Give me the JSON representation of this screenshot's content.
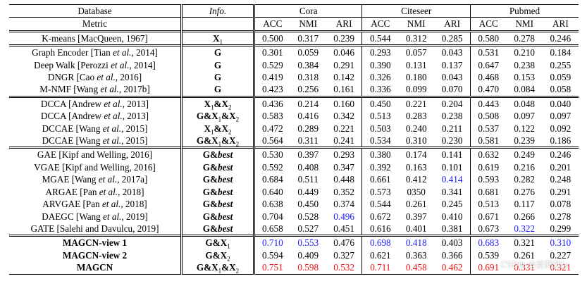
{
  "header": {
    "database_label": "Database",
    "info_label": "Info.",
    "datasets": [
      "Cora",
      "Citeseer",
      "Pubmed"
    ],
    "metric_label": "Metric",
    "metrics": [
      "ACC",
      "NMI",
      "ARI"
    ]
  },
  "rows": [
    {
      "group": 1,
      "method": "K-means [MacQueen, 1967]",
      "info": "X1",
      "bold": false,
      "values": [
        "0.500",
        "0.317",
        "0.239",
        "0.544",
        "0.312",
        "0.285",
        "0.580",
        "0.278",
        "0.246"
      ],
      "colors": [
        "",
        "",
        "",
        "",
        "",
        "",
        "",
        "",
        ""
      ]
    },
    {
      "group": 2,
      "method": "Graph Encoder [Tian et al., 2014]",
      "info": "G",
      "bold": false,
      "values": [
        "0.301",
        "0.059",
        "0.046",
        "0.293",
        "0.057",
        "0.043",
        "0.531",
        "0.210",
        "0.184"
      ],
      "colors": [
        "",
        "",
        "",
        "",
        "",
        "",
        "",
        "",
        ""
      ]
    },
    {
      "group": 2,
      "method": "Deep Walk [Perozzi et al., 2014]",
      "info": "G",
      "bold": false,
      "values": [
        "0.529",
        "0.384",
        "0.291",
        "0.390",
        "0.131",
        "0.137",
        "0.647",
        "0.238",
        "0.255"
      ],
      "colors": [
        "",
        "",
        "",
        "",
        "",
        "",
        "",
        "",
        ""
      ]
    },
    {
      "group": 2,
      "method": "DNGR [Cao et al., 2016]",
      "info": "G",
      "bold": false,
      "values": [
        "0.419",
        "0.318",
        "0.142",
        "0.326",
        "0.180",
        "0.043",
        "0.468",
        "0.153",
        "0.059"
      ],
      "colors": [
        "",
        "",
        "",
        "",
        "",
        "",
        "",
        "",
        ""
      ]
    },
    {
      "group": 2,
      "method": "M-NMF [Wang et al., 2017b]",
      "info": "G",
      "bold": false,
      "values": [
        "0.423",
        "0.256",
        "0.161",
        "0.336",
        "0.099",
        "0.070",
        "0.470",
        "0.084",
        "0.058"
      ],
      "colors": [
        "",
        "",
        "",
        "",
        "",
        "",
        "",
        "",
        ""
      ]
    },
    {
      "group": 3,
      "method": "DCCA [Andrew et al., 2013]",
      "info": "X1&X2",
      "bold": false,
      "values": [
        "0.436",
        "0.214",
        "0.160",
        "0.450",
        "0.221",
        "0.204",
        "0.443",
        "0.048",
        "0.040"
      ],
      "colors": [
        "",
        "",
        "",
        "",
        "",
        "",
        "",
        "",
        ""
      ]
    },
    {
      "group": 3,
      "method": "DCCA [Andrew et al., 2013]",
      "info": "G&X1&X2",
      "bold": false,
      "values": [
        "0.583",
        "0.416",
        "0.342",
        "0.513",
        "0.283",
        "0.238",
        "0.508",
        "0.097",
        "0.097"
      ],
      "colors": [
        "",
        "",
        "",
        "",
        "",
        "",
        "",
        "",
        ""
      ]
    },
    {
      "group": 3,
      "method": "DCCAE [Wang et al., 2015]",
      "info": "X1&X2",
      "bold": false,
      "values": [
        "0.472",
        "0.289",
        "0.221",
        "0.503",
        "0.240",
        "0.211",
        "0.537",
        "0.122",
        "0.092"
      ],
      "colors": [
        "",
        "",
        "",
        "",
        "",
        "",
        "",
        "",
        ""
      ]
    },
    {
      "group": 3,
      "method": "DCCAE [Wang et al., 2015]",
      "info": "G&X1&X2",
      "bold": false,
      "values": [
        "0.564",
        "0.311",
        "0.241",
        "0.534",
        "0.310",
        "0.230",
        "0.581",
        "0.239",
        "0.186"
      ],
      "colors": [
        "",
        "",
        "",
        "",
        "",
        "",
        "",
        "",
        ""
      ]
    },
    {
      "group": 4,
      "method": "GAE [Kipf and Welling, 2016]",
      "info": "G&bestX",
      "bold": false,
      "values": [
        "0.530",
        "0.397",
        "0.293",
        "0.380",
        "0.174",
        "0.141",
        "0.632",
        "0.249",
        "0.246"
      ],
      "colors": [
        "",
        "",
        "",
        "",
        "",
        "",
        "",
        "",
        ""
      ]
    },
    {
      "group": 4,
      "method": "VGAE [Kipf and Welling, 2016]",
      "info": "G&bestX",
      "bold": false,
      "values": [
        "0.592",
        "0.408",
        "0.347",
        "0.392",
        "0.163",
        "0.101",
        "0.619",
        "0.216",
        "0.201"
      ],
      "colors": [
        "",
        "",
        "",
        "",
        "",
        "",
        "",
        "",
        ""
      ]
    },
    {
      "group": 4,
      "method": "MGAE [Wang et al., 2017a]",
      "info": "G&bestX",
      "bold": false,
      "values": [
        "0.684",
        "0.511",
        "0.448",
        "0.661",
        "0.412",
        "0.414",
        "0.593",
        "0.282",
        "0.248"
      ],
      "colors": [
        "",
        "",
        "",
        "",
        "",
        "blue",
        "",
        "",
        ""
      ]
    },
    {
      "group": 4,
      "method": "ARGAE [Pan et al., 2018]",
      "info": "G&bestX",
      "bold": false,
      "values": [
        "0.640",
        "0.449",
        "0.352",
        "0.573",
        "0350",
        "0.341",
        "0.681",
        "0.276",
        "0.291"
      ],
      "colors": [
        "",
        "",
        "",
        "",
        "",
        "",
        "",
        "",
        ""
      ]
    },
    {
      "group": 4,
      "method": "ARVGAE [Pan et al., 2018]",
      "info": "G&bestX",
      "bold": false,
      "values": [
        "0.638",
        "0.450",
        "0.374",
        "0.544",
        "0.261",
        "0.245",
        "0.513",
        "0.117",
        "0.078"
      ],
      "colors": [
        "",
        "",
        "",
        "",
        "",
        "",
        "",
        "",
        ""
      ]
    },
    {
      "group": 4,
      "method": "DAEGC [Wang et al., 2019]",
      "info": "G&bestX",
      "bold": false,
      "values": [
        "0.704",
        "0.528",
        "0.496",
        "0.672",
        "0.397",
        "0.410",
        "0.671",
        "0.266",
        "0.278"
      ],
      "colors": [
        "",
        "",
        "blue",
        "",
        "",
        "",
        "",
        "",
        ""
      ]
    },
    {
      "group": 4,
      "method": "GATE [Salehi and Davulcu, 2019]",
      "info": "G&bestX",
      "bold": false,
      "values": [
        "0.658",
        "0.527",
        "0.451",
        "0.616",
        "0.401",
        "0.381",
        "0.673",
        "0.322",
        "0.299"
      ],
      "colors": [
        "",
        "",
        "",
        "",
        "",
        "",
        "",
        "blue",
        ""
      ]
    },
    {
      "group": 5,
      "method": "MAGCN-view 1",
      "info": "G&X1",
      "bold": true,
      "values": [
        "0.710",
        "0.553",
        "0.476",
        "0.698",
        "0.418",
        "0.403",
        "0.683",
        "0.321",
        "0.310"
      ],
      "colors": [
        "blue",
        "blue",
        "",
        "blue",
        "blue",
        "",
        "blue",
        "",
        "blue"
      ]
    },
    {
      "group": 5,
      "method": "MAGCN-view 2",
      "info": "G&X2",
      "bold": true,
      "values": [
        "0.594",
        "0.409",
        "0.327",
        "0.621",
        "0.363",
        "0.366",
        "0.539",
        "0.261",
        "0.227"
      ],
      "colors": [
        "",
        "",
        "",
        "",
        "",
        "",
        "",
        "",
        ""
      ]
    },
    {
      "group": 5,
      "method": "MAGCN",
      "info": "G&X1&X2",
      "bold": true,
      "values": [
        "0.751",
        "0.598",
        "0.532",
        "0.711",
        "0.458",
        "0.462",
        "0.691",
        "0.331",
        "0.321"
      ],
      "colors": [
        "red",
        "red",
        "red",
        "red",
        "red",
        "red",
        "red",
        "red",
        "red"
      ]
    }
  ],
  "palette": {
    "blue": "#1a1aff",
    "red": "#ee1111"
  },
  "watermark": "CSDN @夏莉莉iy"
}
